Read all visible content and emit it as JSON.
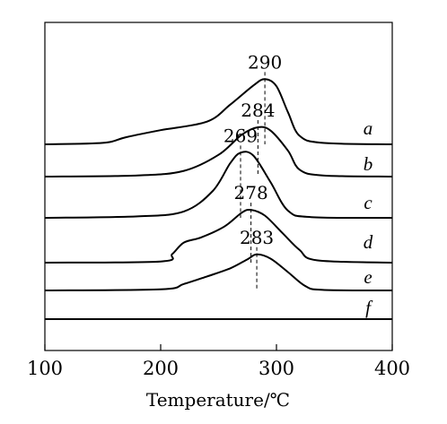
{
  "chart_data": {
    "type": "line",
    "title": "",
    "xlabel": "Temperature/℃",
    "ylabel": "",
    "xlim": [
      100,
      400
    ],
    "x_ticks": [
      100,
      200,
      300,
      400
    ],
    "x_tick_labels": [
      "100",
      "200",
      "300",
      "400"
    ],
    "y_ticks_shown": false,
    "grid": false,
    "legend": "none",
    "line_color": "#000000",
    "series": [
      {
        "name": "a",
        "peak_label": "290",
        "peak_x": 290,
        "points": [
          [
            100,
            0
          ],
          [
            150,
            0.02
          ],
          [
            170,
            0.1
          ],
          [
            200,
            0.2
          ],
          [
            240,
            0.32
          ],
          [
            260,
            0.56
          ],
          [
            280,
            0.83
          ],
          [
            290,
            0.92
          ],
          [
            300,
            0.82
          ],
          [
            310,
            0.45
          ],
          [
            320,
            0.12
          ],
          [
            340,
            0.02
          ],
          [
            400,
            0
          ]
        ]
      },
      {
        "name": "b",
        "peak_label": "284",
        "peak_x": 284,
        "points": [
          [
            100,
            0
          ],
          [
            180,
            0.02
          ],
          [
            220,
            0.1
          ],
          [
            250,
            0.38
          ],
          [
            270,
            0.73
          ],
          [
            284,
            0.86
          ],
          [
            295,
            0.8
          ],
          [
            310,
            0.45
          ],
          [
            320,
            0.12
          ],
          [
            340,
            0.02
          ],
          [
            400,
            0
          ]
        ]
      },
      {
        "name": "c",
        "peak_label": "269",
        "peak_x": 269,
        "points": [
          [
            100,
            0
          ],
          [
            180,
            0.02
          ],
          [
            220,
            0.09
          ],
          [
            245,
            0.38
          ],
          [
            260,
            0.77
          ],
          [
            269,
            0.92
          ],
          [
            280,
            0.88
          ],
          [
            295,
            0.5
          ],
          [
            310,
            0.1
          ],
          [
            330,
            0.01
          ],
          [
            400,
            0
          ]
        ]
      },
      {
        "name": "d",
        "peak_label": "278",
        "peak_x": 278,
        "points": [
          [
            100,
            0
          ],
          [
            200,
            0.02
          ],
          [
            210,
            0.15
          ],
          [
            220,
            0.35
          ],
          [
            235,
            0.44
          ],
          [
            255,
            0.63
          ],
          [
            270,
            0.87
          ],
          [
            278,
            0.92
          ],
          [
            290,
            0.82
          ],
          [
            305,
            0.52
          ],
          [
            320,
            0.22
          ],
          [
            335,
            0.04
          ],
          [
            400,
            0
          ]
        ]
      },
      {
        "name": "e",
        "peak_label": "283",
        "peak_x": 283,
        "points": [
          [
            100,
            0
          ],
          [
            200,
            0.02
          ],
          [
            220,
            0.12
          ],
          [
            240,
            0.26
          ],
          [
            260,
            0.41
          ],
          [
            275,
            0.58
          ],
          [
            283,
            0.67
          ],
          [
            295,
            0.59
          ],
          [
            310,
            0.34
          ],
          [
            325,
            0.08
          ],
          [
            340,
            0.01
          ],
          [
            400,
            0
          ]
        ]
      },
      {
        "name": "f",
        "peak_label": "",
        "points": [
          [
            100,
            0
          ],
          [
            400,
            0
          ]
        ]
      }
    ]
  }
}
